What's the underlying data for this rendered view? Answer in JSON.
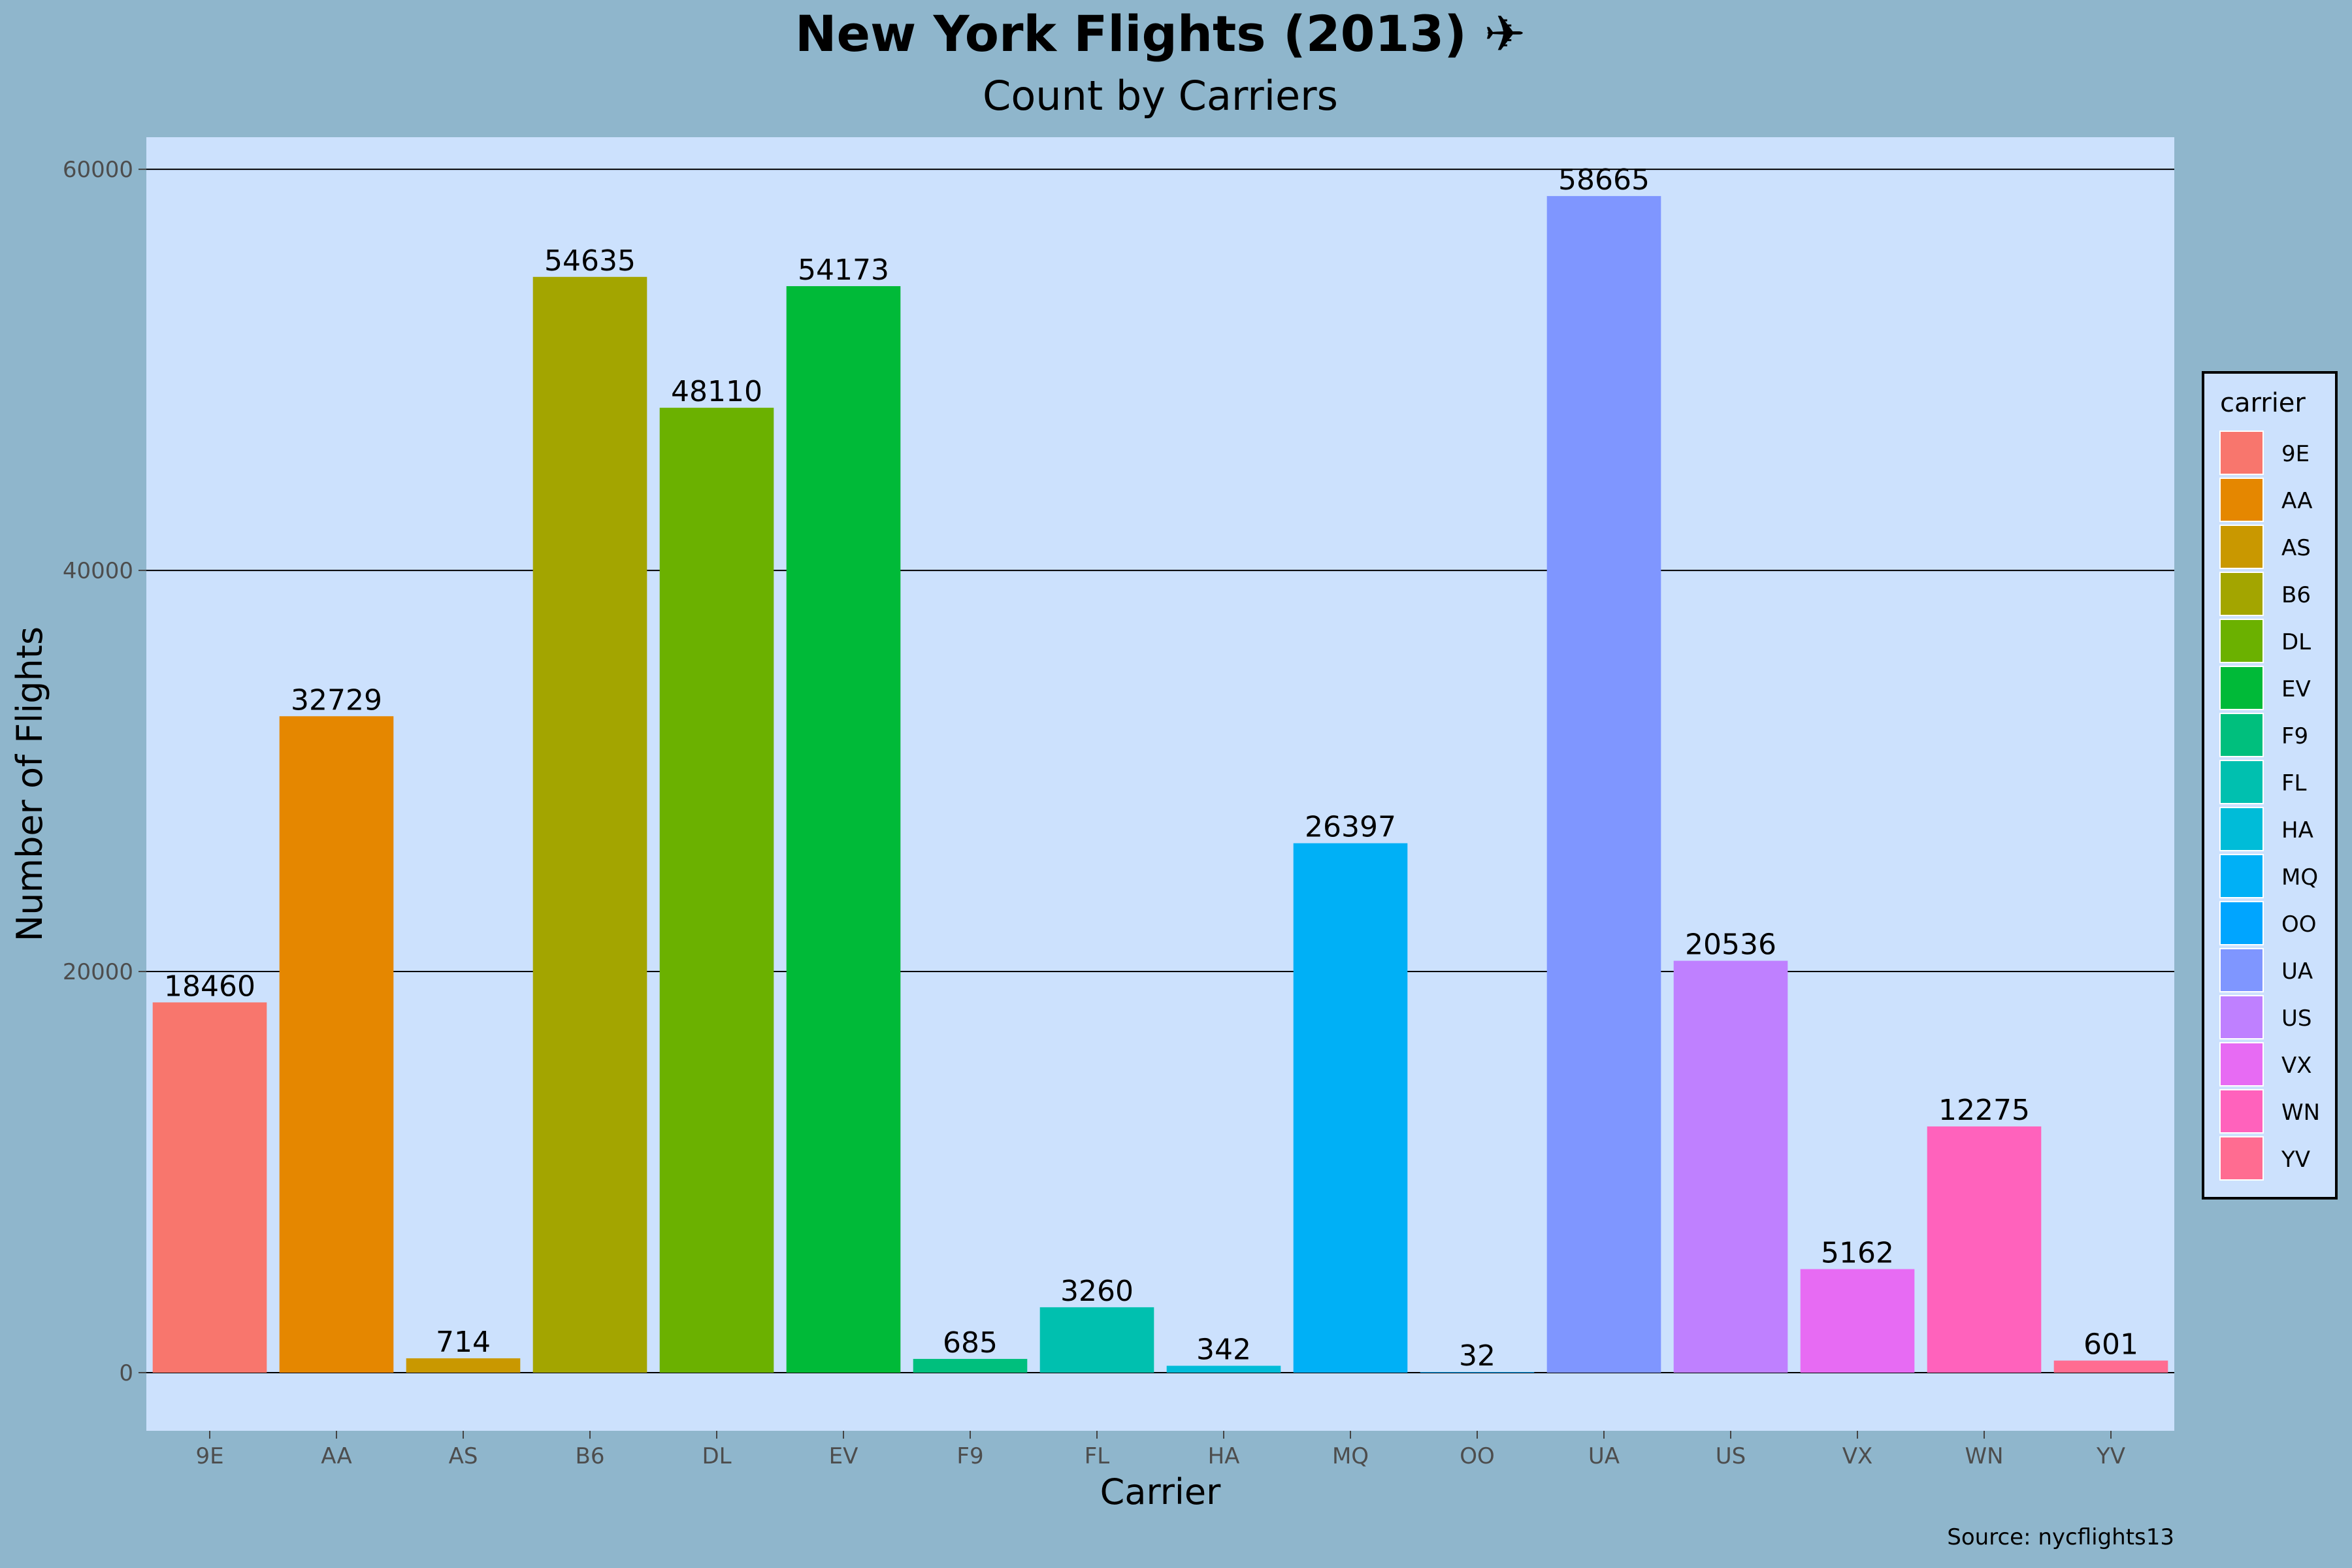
{
  "colors": {
    "background": "#8fb6cc",
    "panel": "#cce1fd",
    "gridline": "#000000"
  },
  "chart_data": {
    "type": "bar",
    "title": "New York Flights (2013) ✈",
    "subtitle": "Count by Carriers",
    "xlabel": "Carrier",
    "ylabel": "Number of Flights",
    "caption": "Source: nycflights13",
    "categories": [
      "9E",
      "AA",
      "AS",
      "B6",
      "DL",
      "EV",
      "F9",
      "FL",
      "HA",
      "MQ",
      "OO",
      "UA",
      "US",
      "VX",
      "WN",
      "YV"
    ],
    "values": [
      18460,
      32729,
      714,
      54635,
      48110,
      54173,
      685,
      3260,
      342,
      26397,
      32,
      58665,
      20536,
      5162,
      12275,
      601
    ],
    "colors": [
      "#F8766D",
      "#E58700",
      "#C99800",
      "#A3A500",
      "#6BB100",
      "#00BA38",
      "#00BF7D",
      "#00C0AF",
      "#00BCD8",
      "#00B0F6",
      "#00A5FF",
      "#7F96FF",
      "#BF80FF",
      "#E76BF3",
      "#FF62BC",
      "#FF6C91"
    ],
    "ylim": [
      -2900,
      61600
    ],
    "yticks": [
      0,
      20000,
      40000,
      60000
    ],
    "grid": "horizontal major lines",
    "legend": {
      "title": "carrier",
      "position": "right",
      "entries": [
        "9E",
        "AA",
        "AS",
        "B6",
        "DL",
        "EV",
        "F9",
        "FL",
        "HA",
        "MQ",
        "OO",
        "UA",
        "US",
        "VX",
        "WN",
        "YV"
      ]
    },
    "data_labels": true
  }
}
